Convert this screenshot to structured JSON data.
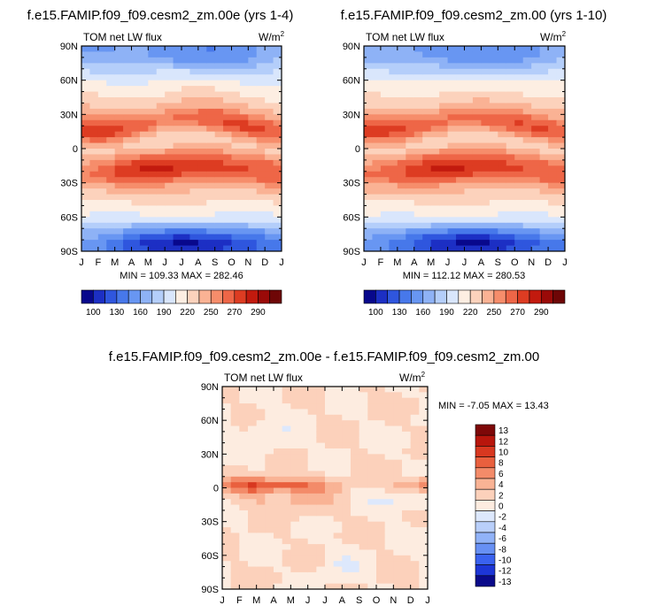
{
  "panels": {
    "top_left": {
      "title": "f.e15.FAMIP.f09_f09.cesm2_zm.00e (yrs 1-4)",
      "subtitle_left": "TOM net LW flux",
      "units": "W/m",
      "units_sup": "2",
      "stats": "MIN = 109.33 MAX = 282.46"
    },
    "top_right": {
      "title": "f.e15.FAMIP.f09_f09.cesm2_zm.00 (yrs 1-10)",
      "subtitle_left": "TOM net LW flux",
      "units": "W/m",
      "units_sup": "2",
      "stats": "MIN = 112.12 MAX = 280.53"
    },
    "bottom": {
      "title": "f.e15.FAMIP.f09_f09.cesm2_zm.00e - f.e15.FAMIP.f09_f09.cesm2_zm.00",
      "subtitle_left": "TOM net LW flux",
      "units": "W/m",
      "units_sup": "2",
      "stats": "MIN =  -7.05 MAX =  13.43"
    }
  },
  "chart_data": [
    {
      "type": "heatmap",
      "title": "f.e15.FAMIP.f09_f09.cesm2_zm.00e (yrs 1-4)",
      "variable": "TOM net LW flux",
      "units": "W/m2",
      "x_ticks": [
        "J",
        "F",
        "M",
        "A",
        "M",
        "J",
        "J",
        "A",
        "S",
        "O",
        "N",
        "D",
        "J"
      ],
      "y_ticks": [
        "90N",
        "60N",
        "30N",
        "0",
        "30S",
        "60S",
        "90S"
      ],
      "ylim": [
        -90,
        90
      ],
      "min": 109.33,
      "max": 282.46,
      "colorbar_labels": [
        "100",
        "130",
        "160",
        "190",
        "220",
        "250",
        "270",
        "290"
      ]
    },
    {
      "type": "heatmap",
      "title": "f.e15.FAMIP.f09_f09.cesm2_zm.00 (yrs 1-10)",
      "variable": "TOM net LW flux",
      "units": "W/m2",
      "x_ticks": [
        "J",
        "F",
        "M",
        "A",
        "M",
        "J",
        "J",
        "A",
        "S",
        "O",
        "N",
        "D",
        "J"
      ],
      "y_ticks": [
        "90N",
        "60N",
        "30N",
        "0",
        "30S",
        "60S",
        "90S"
      ],
      "ylim": [
        -90,
        90
      ],
      "min": 112.12,
      "max": 280.53,
      "colorbar_labels": [
        "100",
        "130",
        "160",
        "190",
        "220",
        "250",
        "270",
        "290"
      ]
    },
    {
      "type": "heatmap",
      "title": "f.e15.FAMIP.f09_f09.cesm2_zm.00e - f.e15.FAMIP.f09_f09.cesm2_zm.00",
      "variable": "TOM net LW flux",
      "units": "W/m2",
      "x_ticks": [
        "J",
        "F",
        "M",
        "A",
        "M",
        "J",
        "J",
        "A",
        "S",
        "O",
        "N",
        "D",
        "J"
      ],
      "y_ticks": [
        "90N",
        "60N",
        "30N",
        "0",
        "30S",
        "60S",
        "90S"
      ],
      "ylim": [
        -90,
        90
      ],
      "min": -7.05,
      "max": 13.43,
      "colorbar_labels": [
        "13",
        "12",
        "10",
        "8",
        "6",
        "4",
        "2",
        "0",
        "-2",
        "-4",
        "-6",
        "-8",
        "-10",
        "-12",
        "-13"
      ]
    }
  ],
  "colors": {
    "abs_palette": [
      "#08088c",
      "#1c2fc4",
      "#2f56de",
      "#4778ea",
      "#6896f2",
      "#8eb2f6",
      "#b4cefa",
      "#d9e6fc",
      "#fdeee2",
      "#fcd2bc",
      "#fab294",
      "#f68d6b",
      "#ee6647",
      "#dd3c22",
      "#c21a0e",
      "#9a0a08",
      "#6e0606"
    ],
    "diff_palette": [
      "#0a0a8a",
      "#1d36d6",
      "#3a62f0",
      "#6790f4",
      "#91b3f8",
      "#b9cffa",
      "#dde8fc",
      "#fdece0",
      "#fcd1bb",
      "#f9b395",
      "#f38b69",
      "#e9603e",
      "#d83820",
      "#b8160c",
      "#7e0808"
    ]
  }
}
